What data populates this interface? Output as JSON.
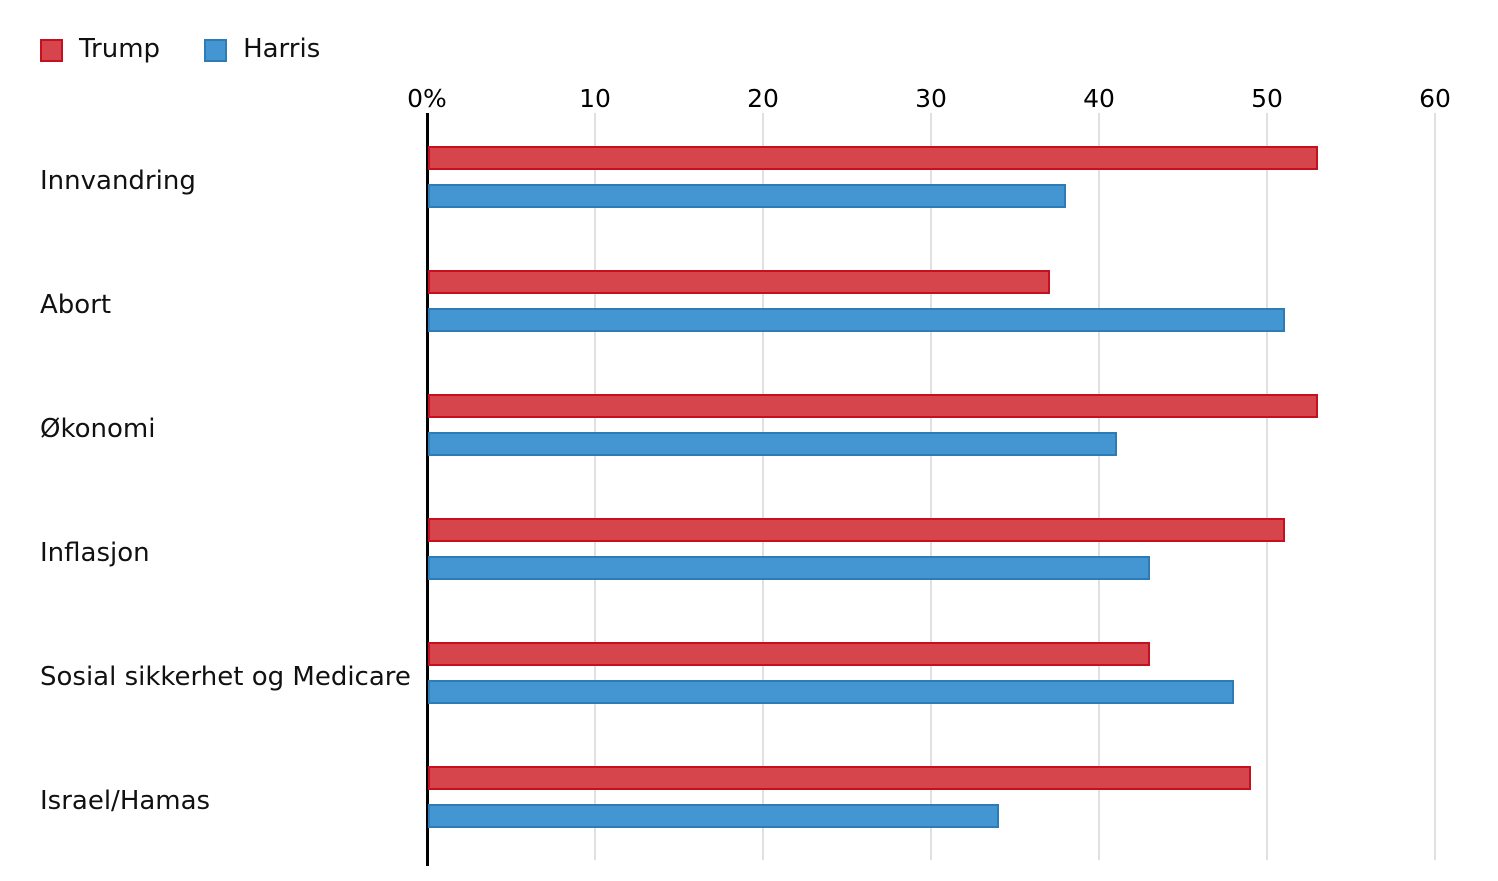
{
  "chart_data": {
    "type": "bar",
    "orientation": "horizontal",
    "title": "",
    "xlabel": "",
    "ylabel": "",
    "categories": [
      "Innvandring",
      "Abort",
      "Økonomi",
      "Inflasjon",
      "Sosial sikkerhet og Medicare",
      "Israel/Hamas"
    ],
    "series": [
      {
        "name": "Trump",
        "color": "#d6454c",
        "border_color": "#c4101f",
        "values": [
          53,
          37,
          53,
          51,
          43,
          49
        ]
      },
      {
        "name": "Harris",
        "color": "#4496d2",
        "border_color": "#2e7cb5",
        "values": [
          38,
          51,
          41,
          43,
          48,
          34
        ]
      }
    ],
    "x_axis": {
      "tick_labels": [
        "0%",
        "10",
        "20",
        "30",
        "40",
        "50",
        "60"
      ],
      "tick_values": [
        0,
        10,
        20,
        30,
        40,
        50,
        60
      ],
      "min": 0,
      "max": 60
    },
    "grid": "vertical",
    "grid_color": "#e0e0e0",
    "axis_line_color": "#000000",
    "legend_position": "top-left"
  }
}
